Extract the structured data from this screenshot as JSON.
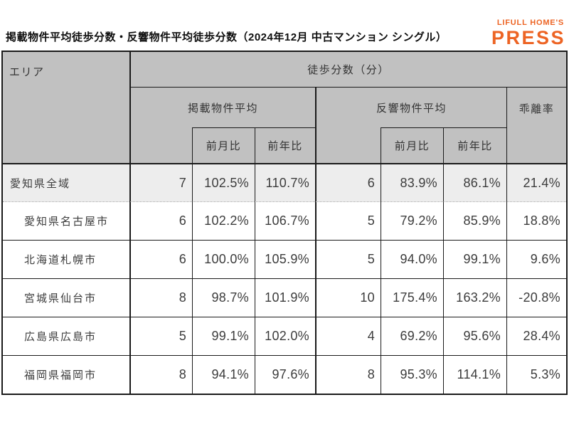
{
  "title": "掲載物件平均徒歩分数・反響物件平均徒歩分数（2024年12月 中古マンション シングル）",
  "logo": {
    "brand": "LIFULL HOME'S",
    "press": "PRESS"
  },
  "table": {
    "header": {
      "area": "エリア",
      "walk_minutes": "徒歩分数（分）",
      "listed_avg": "掲載物件平均",
      "response_avg": "反響物件平均",
      "divergence": "乖離率",
      "mom": "前月比",
      "yoy": "前年比"
    },
    "rows": [
      {
        "area": "愛知県全域",
        "listed": "7",
        "listed_mom": "102.5%",
        "listed_yoy": "110.7%",
        "resp": "6",
        "resp_mom": "83.9%",
        "resp_yoy": "86.1%",
        "div": "21.4%"
      },
      {
        "area": "愛知県名古屋市",
        "listed": "6",
        "listed_mom": "102.2%",
        "listed_yoy": "106.7%",
        "resp": "5",
        "resp_mom": "79.2%",
        "resp_yoy": "85.9%",
        "div": "18.8%"
      },
      {
        "area": "北海道札幌市",
        "listed": "6",
        "listed_mom": "100.0%",
        "listed_yoy": "105.9%",
        "resp": "5",
        "resp_mom": "94.0%",
        "resp_yoy": "99.1%",
        "div": "9.6%"
      },
      {
        "area": "宮城県仙台市",
        "listed": "8",
        "listed_mom": "98.7%",
        "listed_yoy": "101.9%",
        "resp": "10",
        "resp_mom": "175.4%",
        "resp_yoy": "163.2%",
        "div": "-20.8%"
      },
      {
        "area": "広島県広島市",
        "listed": "5",
        "listed_mom": "99.1%",
        "listed_yoy": "102.0%",
        "resp": "4",
        "resp_mom": "69.2%",
        "resp_yoy": "95.6%",
        "div": "28.4%"
      },
      {
        "area": "福岡県福岡市",
        "listed": "8",
        "listed_mom": "94.1%",
        "listed_yoy": "97.6%",
        "resp": "8",
        "resp_mom": "95.3%",
        "resp_yoy": "114.1%",
        "div": "5.3%"
      }
    ]
  },
  "colors": {
    "header_bg": "#c1c1c1",
    "total_row_bg": "#ededed",
    "border": "#1a1a1a",
    "text": "#3c3c3c",
    "logo_orange": "#ed6424"
  },
  "chart_data": {
    "type": "table",
    "title": "掲載物件平均徒歩分数・反響物件平均徒歩分数（2024年12月 中古マンション シングル）",
    "column_group": "徒歩分数（分）",
    "columns": [
      "エリア",
      "掲載物件平均",
      "掲載物件平均 前月比",
      "掲載物件平均 前年比",
      "反響物件平均",
      "反響物件平均 前月比",
      "反響物件平均 前年比",
      "乖離率"
    ],
    "rows": [
      [
        "愛知県全域",
        7,
        "102.5%",
        "110.7%",
        6,
        "83.9%",
        "86.1%",
        "21.4%"
      ],
      [
        "愛知県名古屋市",
        6,
        "102.2%",
        "106.7%",
        5,
        "79.2%",
        "85.9%",
        "18.8%"
      ],
      [
        "北海道札幌市",
        6,
        "100.0%",
        "105.9%",
        5,
        "94.0%",
        "99.1%",
        "9.6%"
      ],
      [
        "宮城県仙台市",
        8,
        "98.7%",
        "101.9%",
        10,
        "175.4%",
        "163.2%",
        "-20.8%"
      ],
      [
        "広島県広島市",
        5,
        "99.1%",
        "102.0%",
        4,
        "69.2%",
        "95.6%",
        "28.4%"
      ],
      [
        "福岡県福岡市",
        8,
        "94.1%",
        "97.6%",
        8,
        "95.3%",
        "114.1%",
        "5.3%"
      ]
    ]
  }
}
